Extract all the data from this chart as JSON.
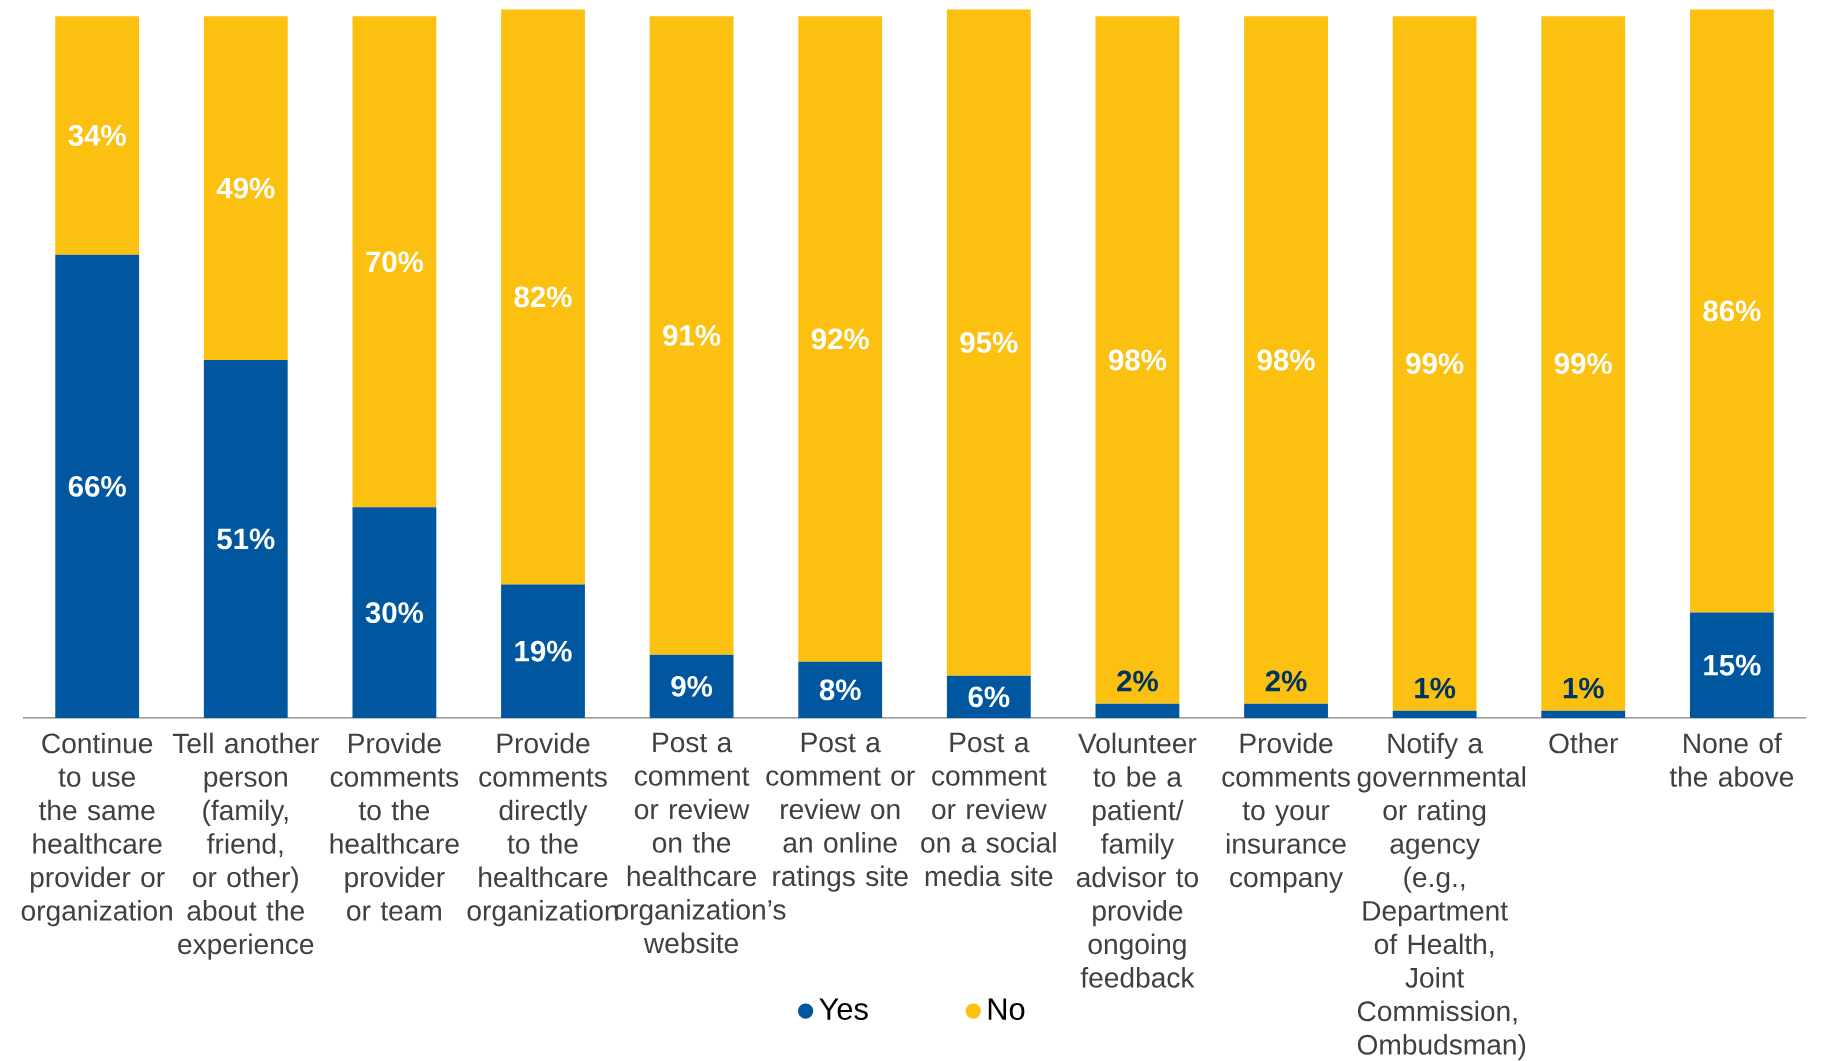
{
  "chart_data": {
    "type": "bar",
    "stacked": true,
    "legend": "bottom",
    "marker": "circle",
    "categories": [
      "Continue to use the same healthcare provider or organization",
      "Tell another person (family, friend, or other) about the experience",
      "Provide comments to the healthcare provider or team",
      "Provide comments directly to the healthcare organization",
      "Post a comment or review on the healthcare organization’s website",
      "Post a comment or review on an online ratings site",
      "Post a comment or review on a social media site",
      "Volunteer to be a patient/ family advisor to provide ongoing feedback",
      "Provide comments to your insurance company",
      "Notify a governmental or rating agency (e.g., Department of Health, Joint Commission, Ombudsman)",
      "Other",
      "None of the above"
    ],
    "series": [
      {
        "name": "Yes",
        "color": "#0057a0",
        "values": [
          66,
          51,
          30,
          19,
          9,
          8,
          6,
          2,
          2,
          1,
          1,
          15
        ],
        "value_labels": [
          "66%",
          "51%",
          "30%",
          "19%",
          "9%",
          "8%",
          "6%",
          "2%",
          "2%",
          "1%",
          "1%",
          "15%"
        ]
      },
      {
        "name": "No",
        "color": "#fcc010",
        "values": [
          34,
          49,
          70,
          82,
          91,
          92,
          95,
          98,
          98,
          99,
          99,
          86
        ],
        "value_labels": [
          "34%",
          "49%",
          "70%",
          "82%",
          "91%",
          "92%",
          "95%",
          "98%",
          "98%",
          "99%",
          "99%",
          "86%"
        ]
      }
    ]
  }
}
